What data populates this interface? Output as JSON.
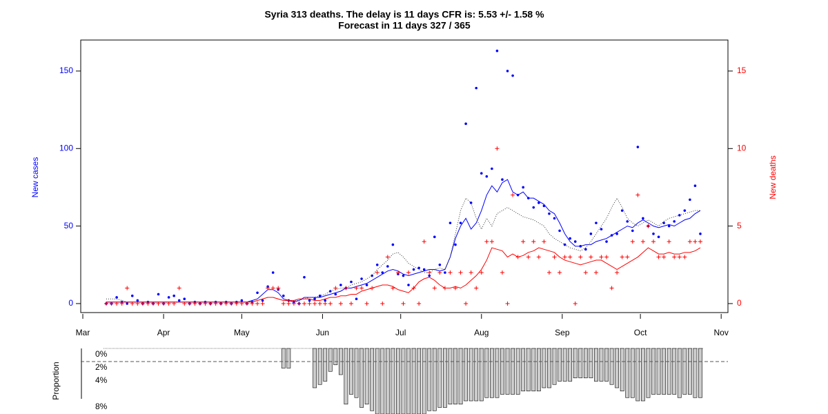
{
  "chart_data": [
    {
      "type": "line",
      "title": "Syria 313 deaths. The delay is 11 days CFR is: 5.53 +/- 1.58 %",
      "subtitle": "Forecast in 11 days 327 / 365",
      "ylabel": "New cases",
      "y2label": "New deaths",
      "xlim": [
        -0.8,
        247.6
      ],
      "xticks": [
        {
          "value": 0,
          "label": "Mar"
        },
        {
          "value": 31,
          "label": "Apr"
        },
        {
          "value": 61,
          "label": "May"
        },
        {
          "value": 92,
          "label": "Jun"
        },
        {
          "value": 122,
          "label": "Jul"
        },
        {
          "value": 153,
          "label": "Aug"
        },
        {
          "value": 184,
          "label": "Sep"
        },
        {
          "value": 214,
          "label": "Oct"
        },
        {
          "value": 245,
          "label": "Nov"
        }
      ],
      "ylim": [
        -5.8,
        170
      ],
      "yticks": [
        0,
        50,
        100,
        150
      ],
      "ycolor": "#0000ff",
      "y2lim": [
        -0.58,
        17.0
      ],
      "y2ticks": [
        0,
        5,
        10,
        15
      ],
      "y2color": "#ff0000",
      "x": [
        9,
        11,
        13,
        15,
        17,
        19,
        21,
        23,
        25,
        27,
        29,
        31,
        33,
        35,
        37,
        39,
        41,
        43,
        45,
        47,
        49,
        51,
        53,
        55,
        57,
        59,
        61,
        63,
        65,
        67,
        69,
        71,
        73,
        75,
        77,
        79,
        81,
        83,
        85,
        87,
        89,
        91,
        93,
        95,
        97,
        99,
        101,
        103,
        105,
        107,
        109,
        111,
        113,
        115,
        117,
        119,
        121,
        123,
        125,
        127,
        129,
        131,
        133,
        135,
        137,
        139,
        141,
        143,
        145,
        147,
        149,
        151,
        153,
        155,
        157,
        159,
        161,
        163,
        165,
        167,
        169,
        171,
        173,
        175,
        177,
        179,
        181,
        183,
        185,
        187,
        189,
        191,
        193,
        195,
        197,
        199,
        201,
        203,
        205,
        207,
        209,
        211,
        213,
        215,
        217,
        219,
        221,
        223,
        225,
        227,
        229,
        231,
        233,
        235,
        237
      ],
      "series": [
        {
          "style": "points",
          "color": "#0000ff",
          "values": [
            0,
            0,
            4,
            1,
            0,
            5,
            2,
            0,
            1,
            0,
            6,
            0,
            4,
            5,
            2,
            3,
            0,
            1,
            0,
            1,
            0,
            1,
            0,
            1,
            0,
            1,
            2,
            0,
            1,
            7,
            2,
            11,
            20,
            9,
            5,
            2,
            1,
            0,
            17,
            2,
            3,
            5,
            2,
            8,
            6,
            12,
            10,
            14,
            3,
            16,
            12,
            18,
            25,
            20,
            24,
            38,
            19,
            18,
            12,
            22,
            23,
            22,
            18,
            43,
            25,
            20,
            52,
            38,
            52,
            116,
            65,
            139,
            84,
            82,
            87,
            163,
            80,
            150,
            147,
            70,
            75,
            68,
            62,
            65,
            63,
            58,
            55,
            47,
            38,
            42,
            40,
            37,
            35,
            45,
            52,
            48,
            40,
            44,
            45,
            60,
            53,
            47,
            101,
            55,
            50,
            45,
            43,
            52,
            50,
            53,
            57,
            60,
            67,
            76,
            45
          ]
        },
        {
          "style": "line",
          "color": "#0000ff",
          "values": [
            1,
            1,
            1,
            1,
            1,
            1,
            1,
            1,
            1,
            1,
            1,
            1,
            1,
            1,
            1,
            1,
            1,
            1,
            1,
            1,
            1,
            1,
            1,
            1,
            1,
            1,
            1,
            1,
            2,
            3,
            6,
            9,
            9,
            7,
            3,
            2,
            1,
            2,
            4,
            4,
            4,
            4,
            5,
            6,
            7,
            8,
            10,
            10,
            11,
            12,
            13,
            15,
            17,
            19,
            21,
            22,
            21,
            19,
            18,
            19,
            20,
            21,
            22,
            22,
            21,
            22,
            30,
            42,
            50,
            55,
            48,
            52,
            60,
            70,
            76,
            72,
            78,
            80,
            72,
            70,
            72,
            68,
            68,
            66,
            64,
            60,
            58,
            52,
            45,
            40,
            37,
            37,
            38,
            38,
            40,
            41,
            42,
            44,
            46,
            48,
            50,
            49,
            52,
            54,
            52,
            50,
            49,
            50,
            51,
            50,
            52,
            54,
            55,
            58,
            60
          ]
        },
        {
          "style": "dotted",
          "color": "#333333",
          "values": [
            3,
            3,
            3,
            2,
            1,
            1,
            1,
            1,
            1,
            1,
            1,
            1,
            1,
            1,
            1,
            1,
            1,
            1,
            1,
            1,
            1,
            1,
            1,
            1,
            1,
            1,
            1,
            1,
            1,
            2,
            3,
            4,
            4,
            3,
            2,
            2,
            2,
            2,
            3,
            4,
            4,
            5,
            6,
            8,
            9,
            10,
            10,
            12,
            13,
            14,
            16,
            18,
            22,
            25,
            28,
            32,
            33,
            30,
            26,
            24,
            22,
            20,
            20,
            22,
            23,
            22,
            30,
            45,
            60,
            68,
            65,
            55,
            48,
            55,
            50,
            58,
            60,
            62,
            60,
            58,
            56,
            55,
            54,
            52,
            50,
            45,
            42,
            40,
            38,
            36,
            35,
            34,
            36,
            40,
            45,
            50,
            55,
            62,
            68,
            62,
            55,
            52,
            50,
            52,
            54,
            52,
            50,
            53,
            55,
            56,
            57,
            58,
            59,
            60,
            60
          ]
        },
        {
          "style": "plus",
          "axis": "y2",
          "color": "#ff0000",
          "values": [
            0,
            0,
            0,
            0,
            1,
            0,
            0,
            0,
            0,
            0,
            0,
            0,
            0,
            0,
            1,
            0,
            0,
            0,
            0,
            0,
            0,
            0,
            0,
            0,
            0,
            0,
            0,
            0,
            0,
            0,
            0,
            1,
            1,
            1,
            0,
            0,
            0,
            0,
            0,
            0,
            0,
            0,
            0,
            0,
            1,
            0,
            1,
            0,
            1,
            1,
            0,
            1,
            2,
            0,
            3,
            1,
            2,
            0,
            2,
            1,
            0,
            4,
            2,
            1,
            2,
            1,
            2,
            1,
            2,
            0,
            2,
            1,
            2,
            4,
            4,
            10,
            2,
            0,
            7,
            3,
            4,
            3,
            4,
            3,
            4,
            2,
            3,
            2,
            3,
            3,
            0,
            3,
            2,
            3,
            2,
            3,
            3,
            1,
            2,
            3,
            3,
            4,
            7,
            4,
            5,
            4,
            3,
            3,
            4,
            3,
            3,
            3,
            4,
            4,
            4
          ]
        },
        {
          "style": "line",
          "axis": "y2",
          "color": "#ff0000",
          "values": [
            0.1,
            0.1,
            0.1,
            0.1,
            0.1,
            0.1,
            0.1,
            0.1,
            0.1,
            0.1,
            0.1,
            0.1,
            0.1,
            0.1,
            0.1,
            0.1,
            0.1,
            0.1,
            0.1,
            0.1,
            0.1,
            0.1,
            0.1,
            0.1,
            0.1,
            0.1,
            0.1,
            0.1,
            0.1,
            0.2,
            0.3,
            0.4,
            0.4,
            0.3,
            0.2,
            0.2,
            0.2,
            0.3,
            0.3,
            0.3,
            0.2,
            0.2,
            0.3,
            0.4,
            0.4,
            0.5,
            0.5,
            0.6,
            0.6,
            0.8,
            0.9,
            1.0,
            1.1,
            1.2,
            1.2,
            1.1,
            0.9,
            0.8,
            0.7,
            1.0,
            1.4,
            1.6,
            1.7,
            1.5,
            1.2,
            1.0,
            1.0,
            1.1,
            1.0,
            1.2,
            1.5,
            1.8,
            2.2,
            2.8,
            3.6,
            3.5,
            3.4,
            3.0,
            3.2,
            3.0,
            3.1,
            3.3,
            3.4,
            3.6,
            3.5,
            3.4,
            3.3,
            3.0,
            2.8,
            2.7,
            2.6,
            2.5,
            2.6,
            2.7,
            2.8,
            2.8,
            2.6,
            2.4,
            2.2,
            2.4,
            2.6,
            2.8,
            3.0,
            3.3,
            3.6,
            3.4,
            3.2,
            3.2,
            3.3,
            3.2,
            3.2,
            3.3,
            3.3,
            3.4,
            3.6
          ]
        }
      ]
    },
    {
      "type": "bar",
      "ylabel": "Proportion",
      "xlim": [
        -0.8,
        247.6
      ],
      "ylim": [
        0,
        10
      ],
      "yticks": [
        {
          "value": 0,
          "label": "0%"
        },
        {
          "value": 2,
          "label": "2%"
        },
        {
          "value": 4,
          "label": "4%"
        },
        {
          "value": 8,
          "label": "8%"
        }
      ],
      "reference_line": 2,
      "color": "#cccccc",
      "x": [
        77,
        79,
        89,
        91,
        93,
        95,
        97,
        99,
        101,
        103,
        105,
        107,
        109,
        111,
        113,
        115,
        117,
        119,
        121,
        123,
        125,
        127,
        129,
        131,
        133,
        135,
        137,
        139,
        141,
        143,
        145,
        147,
        149,
        151,
        153,
        155,
        157,
        159,
        161,
        163,
        165,
        167,
        169,
        171,
        173,
        175,
        177,
        179,
        181,
        183,
        185,
        187,
        189,
        191,
        193,
        195,
        197,
        199,
        201,
        203,
        205,
        207,
        209,
        211,
        213,
        215,
        217,
        219,
        221,
        223,
        225,
        227,
        229,
        231,
        233,
        235,
        237
      ],
      "values": [
        3,
        3,
        6,
        5.5,
        5,
        3.5,
        2.5,
        4,
        8.5,
        7,
        7.5,
        9,
        8.5,
        9.5,
        10,
        10,
        10,
        10,
        10,
        10,
        10,
        10,
        10,
        10,
        9.5,
        9.5,
        9,
        9,
        8.5,
        8.5,
        8.5,
        8,
        8,
        8,
        8,
        7.5,
        7.5,
        7.5,
        7,
        7,
        7,
        7,
        6.5,
        6.5,
        6.5,
        6.5,
        6,
        6,
        5.5,
        5,
        5,
        5,
        4.5,
        4.5,
        4.5,
        4.5,
        5,
        5,
        5,
        5.5,
        6,
        6.5,
        7.5,
        7.5,
        8,
        8,
        7.5,
        7,
        7,
        7,
        7,
        7,
        7.5,
        7,
        7,
        7.5,
        7.5
      ]
    }
  ]
}
